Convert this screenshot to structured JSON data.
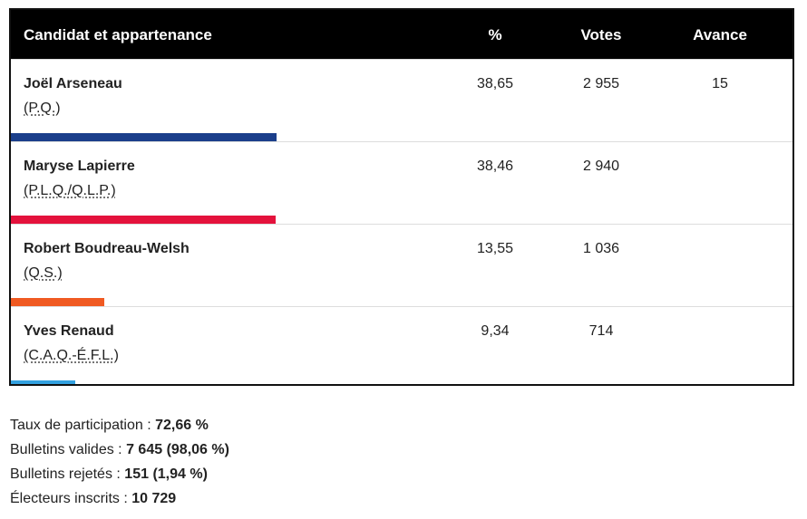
{
  "table": {
    "headers": {
      "candidate": "Candidat et appartenance",
      "pct": "%",
      "votes": "Votes",
      "lead": "Avance"
    },
    "scale_max_pct": 100,
    "rows": [
      {
        "name": "Joël Arseneau",
        "party": "(P.Q.)",
        "pct": "38,65",
        "pct_value": 38.65,
        "votes": "2 955",
        "lead": "15",
        "color": "#1b3f8b"
      },
      {
        "name": "Maryse Lapierre",
        "party": "(P.L.Q./Q.L.P.)",
        "pct": "38,46",
        "pct_value": 38.46,
        "votes": "2 940",
        "lead": "",
        "color": "#e4123c"
      },
      {
        "name": "Robert Boudreau-Welsh",
        "party": "(Q.S.)",
        "pct": "13,55",
        "pct_value": 13.55,
        "votes": "1 036",
        "lead": "",
        "color": "#f05a22"
      },
      {
        "name": "Yves Renaud",
        "party": "(C.A.Q.-É.F.L.)",
        "pct": "9,34",
        "pct_value": 9.34,
        "votes": "714",
        "lead": "",
        "color": "#33a1e0"
      }
    ]
  },
  "stats": {
    "turnout_label": "Taux de participation :",
    "turnout_value": "72,66 %",
    "valid_label": "Bulletins valides :",
    "valid_value": "7 645 (98,06 %)",
    "rejected_label": "Bulletins rejetés :",
    "rejected_value": "151 (1,94 %)",
    "registered_label": "Électeurs inscrits :",
    "registered_value": "10 729"
  }
}
